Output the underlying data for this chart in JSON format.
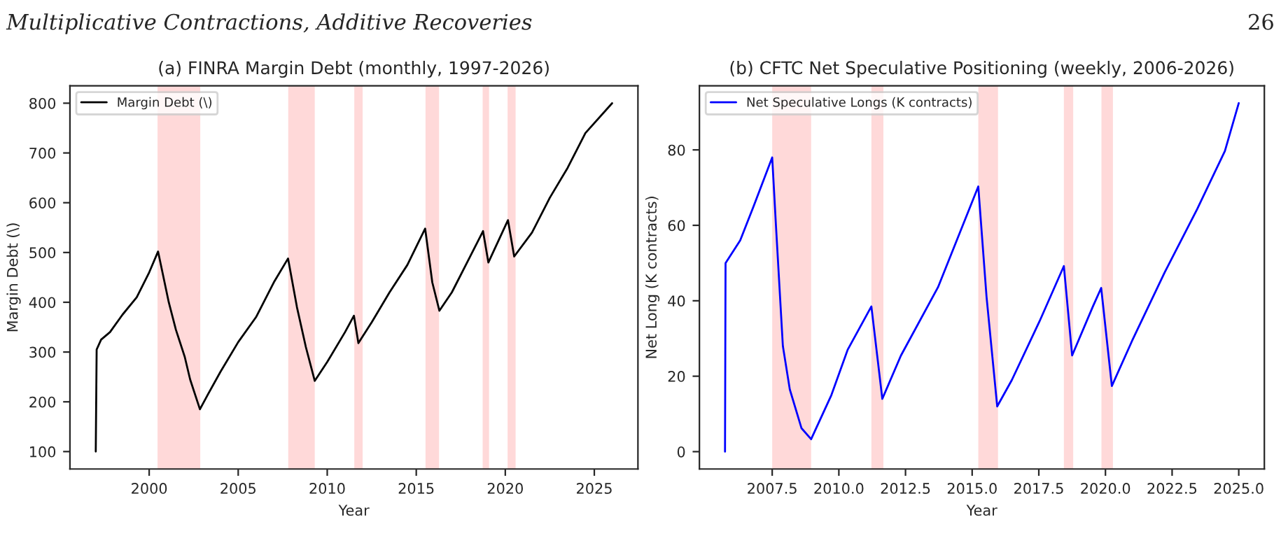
{
  "chart_data": [
    {
      "type": "line",
      "title": "(a) FINRA Margin Debt (monthly, 1997-2026)",
      "xlabel": "Year",
      "ylabel": "Margin Debt (\\)",
      "annotations": [
        "Multiplicative Contractions, Additive Recoveries",
        "26"
      ],
      "series": [
        {
          "name": "Margin Debt (\\)",
          "color": "#000000",
          "x": [
            1997.0,
            1997.05,
            1997.3,
            1997.8,
            1998.5,
            1999.3,
            2000.0,
            2000.5,
            2001.1,
            2001.5,
            2002.0,
            2002.3,
            2002.85,
            2003.3,
            2004,
            2005,
            2006,
            2007,
            2007.8,
            2008.3,
            2008.8,
            2009.3,
            2010,
            2011,
            2011.5,
            2011.75,
            2012.5,
            2013.5,
            2014.5,
            2015.5,
            2015.9,
            2016.3,
            2017,
            2018,
            2018.75,
            2019.05,
            2020.15,
            2020.5,
            2021.5,
            2022.5,
            2023.5,
            2024.5,
            2026.0
          ],
          "values": [
            100,
            305,
            325,
            340,
            375,
            410,
            460,
            502,
            400,
            345,
            290,
            245,
            185,
            215,
            260,
            320,
            370,
            440,
            488,
            390,
            310,
            242,
            280,
            340,
            373,
            318,
            360,
            420,
            475,
            548,
            440,
            383,
            420,
            490,
            543,
            480,
            565,
            492,
            540,
            610,
            670,
            740,
            800
          ]
        }
      ],
      "bands": [
        {
          "axis": "x",
          "from": 2000.47,
          "to": 2002.87,
          "color": "#ffd9d9"
        },
        {
          "axis": "x",
          "from": 2007.81,
          "to": 2009.3,
          "color": "#ffd9d9"
        },
        {
          "axis": "x",
          "from": 2011.52,
          "to": 2011.99,
          "color": "#ffd9d9"
        },
        {
          "axis": "x",
          "from": 2015.52,
          "to": 2016.28,
          "color": "#ffd9d9"
        },
        {
          "axis": "x",
          "from": 2018.73,
          "to": 2019.09,
          "color": "#ffd9d9"
        },
        {
          "axis": "x",
          "from": 2020.13,
          "to": 2020.58,
          "color": "#ffd9d9"
        }
      ],
      "xlim": [
        1995.55,
        2027.45
      ],
      "xticks": [
        2000,
        2005,
        2010,
        2015,
        2020,
        2025
      ],
      "ylim": [
        65,
        835
      ],
      "yticks": [
        100,
        200,
        300,
        400,
        500,
        600,
        700,
        800
      ],
      "grid": false,
      "legend": "top left",
      "line_style": "solid",
      "marker": "none"
    },
    {
      "type": "line",
      "title": "(b) CFTC Net Speculative Positioning (weekly, 2006-2026)",
      "xlabel": "Year",
      "ylabel": "Net Long (K contracts)",
      "series": [
        {
          "name": "Net Speculative Longs (K contracts)",
          "color": "#0000ff",
          "x": [
            2005.73,
            2005.75,
            2006.3,
            2006.8,
            2007.5,
            2007.64,
            2007.9,
            2008.16,
            2008.6,
            2008.96,
            2009.72,
            2010.33,
            2011.22,
            2011.63,
            2012.33,
            2013.72,
            2015.23,
            2015.54,
            2015.94,
            2016.49,
            2017.53,
            2018.44,
            2018.75,
            2019.53,
            2019.84,
            2020.24,
            2021.0,
            2022.22,
            2023.44,
            2024.48,
            2025.0
          ],
          "values": [
            0,
            50,
            56,
            65,
            78,
            60,
            28,
            16.5,
            6.2,
            3.3,
            15,
            27,
            38.5,
            14,
            25.5,
            43.6,
            70.3,
            41,
            12,
            19,
            34.6,
            49.2,
            25.5,
            38.5,
            43.4,
            17.4,
            29.4,
            47.5,
            64.3,
            79.7,
            92.4
          ]
        }
      ],
      "bands": [
        {
          "axis": "x",
          "from": 2007.5,
          "to": 2008.96,
          "color": "#ffd9d9"
        },
        {
          "axis": "x",
          "from": 2011.22,
          "to": 2011.67,
          "color": "#ffd9d9"
        },
        {
          "axis": "x",
          "from": 2015.23,
          "to": 2015.97,
          "color": "#ffd9d9"
        },
        {
          "axis": "x",
          "from": 2018.44,
          "to": 2018.79,
          "color": "#ffd9d9"
        },
        {
          "axis": "x",
          "from": 2019.85,
          "to": 2020.28,
          "color": "#ffd9d9"
        }
      ],
      "xlim": [
        2004.77,
        2025.96
      ],
      "xticks": [
        {
          "value": 2007.5,
          "label": "2007.5"
        },
        {
          "value": 2010.0,
          "label": "2010.0"
        },
        {
          "value": 2012.5,
          "label": "2012.5"
        },
        {
          "value": 2015.0,
          "label": "2015.0"
        },
        {
          "value": 2017.5,
          "label": "2017.5"
        },
        {
          "value": 2020.0,
          "label": "2020.0"
        },
        {
          "value": 2022.5,
          "label": "2022.5"
        },
        {
          "value": 2025.0,
          "label": "2025.0"
        }
      ],
      "ylim": [
        -4.6,
        97
      ],
      "yticks": [
        0,
        20,
        40,
        60,
        80
      ],
      "grid": false,
      "legend": "top left",
      "line_style": "solid",
      "marker": "none"
    }
  ]
}
